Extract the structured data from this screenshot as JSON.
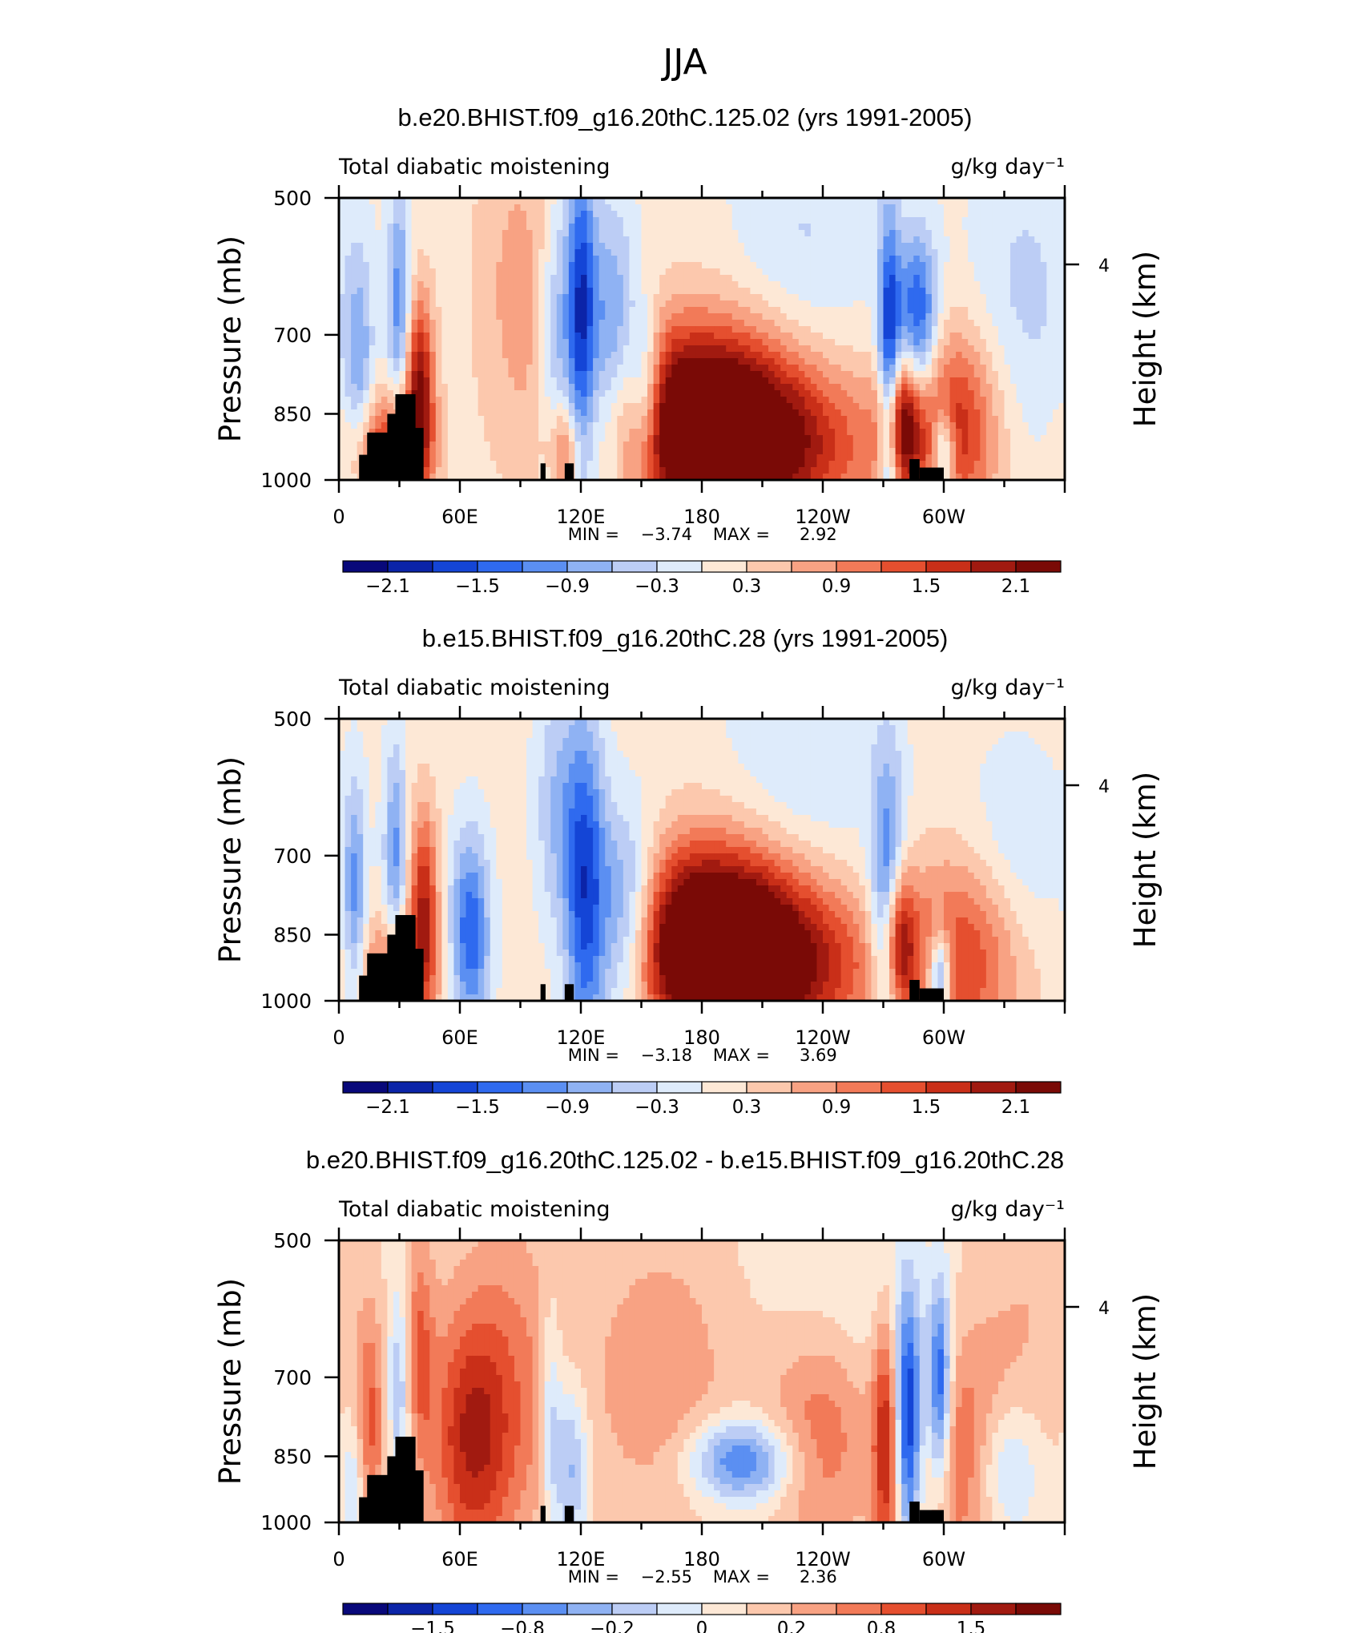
{
  "figure_title": "JJA",
  "colors": {
    "blues": [
      "#08087a",
      "#0b24a8",
      "#1445d6",
      "#2f6aef",
      "#5b8ff2",
      "#8fb2f3",
      "#bccdf5",
      "#deebfb"
    ],
    "reds": [
      "#fde8d6",
      "#fcc8ad",
      "#f8a283",
      "#f27a58",
      "#e54f2f",
      "#c92f18",
      "#a11a10",
      "#7a0a06"
    ]
  },
  "chart_data": [
    {
      "type": "heatmap",
      "title": "b.e20.BHIST.f09_g16.20thC.125.02 (yrs 1991-2005)",
      "left_label": "Total diabatic moistening",
      "units": "g/kg day⁻¹",
      "ylabel": "Pressure (mb)",
      "ylabel_right": "Height (km)",
      "y_ticks": [
        "500",
        "700",
        "850",
        "1000"
      ],
      "y_right_ticks": [
        "4"
      ],
      "x_ticks": [
        "0",
        "60E",
        "120E",
        "180",
        "120W",
        "60W"
      ],
      "min_label": "MIN =",
      "min_value": "−3.74",
      "max_label": "MAX =",
      "max_value": "2.92",
      "colorbar_labels": [
        "−2.1",
        "−1.5",
        "−0.9",
        "−0.3",
        "0.3",
        "0.9",
        "1.5",
        "2.1"
      ],
      "features": [
        {
          "lon": 180,
          "p": 860,
          "v": 2.7,
          "sx": 34,
          "sy": 0.17
        },
        {
          "lon": 215,
          "p": 930,
          "v": 1.4,
          "sx": 40,
          "sy": 0.14
        },
        {
          "lon": 278,
          "p": 865,
          "v": 2.2,
          "sx": 7,
          "sy": 0.12
        },
        {
          "lon": 305,
          "p": 880,
          "v": 1.6,
          "sx": 16,
          "sy": 0.17
        },
        {
          "lon": 40,
          "p": 800,
          "v": 2.0,
          "sx": 5,
          "sy": 0.16
        },
        {
          "lon": 25,
          "p": 930,
          "v": 1.5,
          "sx": 14,
          "sy": 0.1
        },
        {
          "lon": 90,
          "p": 620,
          "v": 0.6,
          "sx": 16,
          "sy": 0.3
        },
        {
          "lon": 120,
          "p": 680,
          "v": -1.9,
          "sx": 5,
          "sy": 0.3
        },
        {
          "lon": 135,
          "p": 760,
          "v": -1.5,
          "sx": 9,
          "sy": 0.25
        },
        {
          "lon": 152,
          "p": 820,
          "v": -1.6,
          "sx": 6,
          "sy": 0.14
        },
        {
          "lon": 108,
          "p": 720,
          "v": -1.0,
          "sx": 6,
          "sy": 0.25
        },
        {
          "lon": 30,
          "p": 650,
          "v": -1.2,
          "sx": 4,
          "sy": 0.2
        },
        {
          "lon": 10,
          "p": 760,
          "v": -0.9,
          "sx": 5,
          "sy": 0.2
        },
        {
          "lon": 273,
          "p": 800,
          "v": -2.3,
          "sx": 4,
          "sy": 0.28
        },
        {
          "lon": 287,
          "p": 680,
          "v": -1.8,
          "sx": 7,
          "sy": 0.15
        },
        {
          "lon": 300,
          "p": 940,
          "v": -1.7,
          "sx": 4,
          "sy": 0.08
        },
        {
          "lon": 340,
          "p": 640,
          "v": -0.5,
          "sx": 20,
          "sy": 0.28
        },
        {
          "lon": 230,
          "p": 560,
          "v": -0.45,
          "sx": 25,
          "sy": 0.22
        },
        {
          "lon": 112,
          "p": 930,
          "v": 1.1,
          "sx": 5,
          "sy": 0.08
        }
      ]
    },
    {
      "type": "heatmap",
      "title": "b.e15.BHIST.f09_g16.20thC.28 (yrs 1991-2005)",
      "left_label": "Total diabatic moistening",
      "units": "g/kg day⁻¹",
      "ylabel": "Pressure (mb)",
      "ylabel_right": "Height (km)",
      "y_ticks": [
        "500",
        "700",
        "850",
        "1000"
      ],
      "y_right_ticks": [
        "4"
      ],
      "x_ticks": [
        "0",
        "60E",
        "120E",
        "180",
        "120W",
        "60W"
      ],
      "min_label": "MIN =",
      "min_value": "−3.18",
      "max_label": "MAX =",
      "max_value": "3.69",
      "colorbar_labels": [
        "−2.1",
        "−1.5",
        "−0.9",
        "−0.3",
        "0.3",
        "0.9",
        "1.5",
        "2.1"
      ],
      "features": [
        {
          "lon": 185,
          "p": 860,
          "v": 2.9,
          "sx": 33,
          "sy": 0.17
        },
        {
          "lon": 215,
          "p": 930,
          "v": 1.5,
          "sx": 38,
          "sy": 0.14
        },
        {
          "lon": 310,
          "p": 900,
          "v": 1.4,
          "sx": 22,
          "sy": 0.18
        },
        {
          "lon": 278,
          "p": 860,
          "v": 1.8,
          "sx": 5,
          "sy": 0.12
        },
        {
          "lon": 42,
          "p": 780,
          "v": 1.6,
          "sx": 5,
          "sy": 0.16
        },
        {
          "lon": 30,
          "p": 930,
          "v": 1.2,
          "sx": 14,
          "sy": 0.1
        },
        {
          "lon": 65,
          "p": 850,
          "v": -1.6,
          "sx": 7,
          "sy": 0.17
        },
        {
          "lon": 122,
          "p": 780,
          "v": -1.8,
          "sx": 7,
          "sy": 0.3
        },
        {
          "lon": 142,
          "p": 830,
          "v": -1.9,
          "sx": 12,
          "sy": 0.18
        },
        {
          "lon": 108,
          "p": 640,
          "v": -0.7,
          "sx": 8,
          "sy": 0.25
        },
        {
          "lon": 28,
          "p": 700,
          "v": -1.1,
          "sx": 4,
          "sy": 0.2
        },
        {
          "lon": 8,
          "p": 780,
          "v": -1.1,
          "sx": 4,
          "sy": 0.2
        },
        {
          "lon": 272,
          "p": 800,
          "v": -1.6,
          "sx": 6,
          "sy": 0.26
        },
        {
          "lon": 298,
          "p": 940,
          "v": -1.9,
          "sx": 4,
          "sy": 0.08
        },
        {
          "lon": 335,
          "p": 720,
          "v": -0.5,
          "sx": 18,
          "sy": 0.2
        },
        {
          "lon": 230,
          "p": 560,
          "v": -0.45,
          "sx": 26,
          "sy": 0.22
        }
      ]
    },
    {
      "type": "heatmap",
      "title": "b.e20.BHIST.f09_g16.20thC.125.02 - b.e15.BHIST.f09_g16.20thC.28",
      "left_label": "Total diabatic moistening",
      "units": "g/kg day⁻¹",
      "ylabel": "Pressure (mb)",
      "ylabel_right": "Height (km)",
      "y_ticks": [
        "500",
        "700",
        "850",
        "1000"
      ],
      "y_right_ticks": [
        "4"
      ],
      "x_ticks": [
        "0",
        "60E",
        "120E",
        "180",
        "120W",
        "60W"
      ],
      "min_label": "MIN =",
      "min_value": "−2.55",
      "max_label": "MAX =",
      "max_value": "2.36",
      "colorbar_labels": [
        "−1.5",
        "−0.8",
        "−0.2",
        "0",
        "0.2",
        "0.8",
        "1.5"
      ],
      "features": [
        {
          "lon": 65,
          "p": 820,
          "v": 1.3,
          "sx": 14,
          "sy": 0.22
        },
        {
          "lon": 85,
          "p": 720,
          "v": 0.7,
          "sx": 20,
          "sy": 0.3
        },
        {
          "lon": 160,
          "p": 700,
          "v": 0.6,
          "sx": 25,
          "sy": 0.25
        },
        {
          "lon": 240,
          "p": 800,
          "v": 1.0,
          "sx": 20,
          "sy": 0.2
        },
        {
          "lon": 272,
          "p": 820,
          "v": 1.6,
          "sx": 5,
          "sy": 0.22
        },
        {
          "lon": 310,
          "p": 860,
          "v": 1.0,
          "sx": 14,
          "sy": 0.2
        },
        {
          "lon": 15,
          "p": 800,
          "v": 1.1,
          "sx": 5,
          "sy": 0.2
        },
        {
          "lon": 40,
          "p": 650,
          "v": 0.9,
          "sx": 5,
          "sy": 0.2
        },
        {
          "lon": 200,
          "p": 860,
          "v": -1.6,
          "sx": 18,
          "sy": 0.07
        },
        {
          "lon": 282,
          "p": 780,
          "v": -2.2,
          "sx": 5,
          "sy": 0.22
        },
        {
          "lon": 298,
          "p": 720,
          "v": -1.9,
          "sx": 4,
          "sy": 0.18
        },
        {
          "lon": 330,
          "p": 880,
          "v": -0.9,
          "sx": 12,
          "sy": 0.12
        },
        {
          "lon": 115,
          "p": 870,
          "v": -1.1,
          "sx": 6,
          "sy": 0.15
        },
        {
          "lon": 105,
          "p": 760,
          "v": -0.8,
          "sx": 4,
          "sy": 0.2
        },
        {
          "lon": 30,
          "p": 720,
          "v": -0.9,
          "sx": 4,
          "sy": 0.18
        },
        {
          "lon": 8,
          "p": 900,
          "v": -0.7,
          "sx": 5,
          "sy": 0.12
        },
        {
          "lon": 255,
          "p": 600,
          "v": -0.35,
          "sx": 30,
          "sy": 0.28
        },
        {
          "lon": 340,
          "p": 620,
          "v": 0.35,
          "sx": 20,
          "sy": 0.28
        }
      ]
    }
  ]
}
